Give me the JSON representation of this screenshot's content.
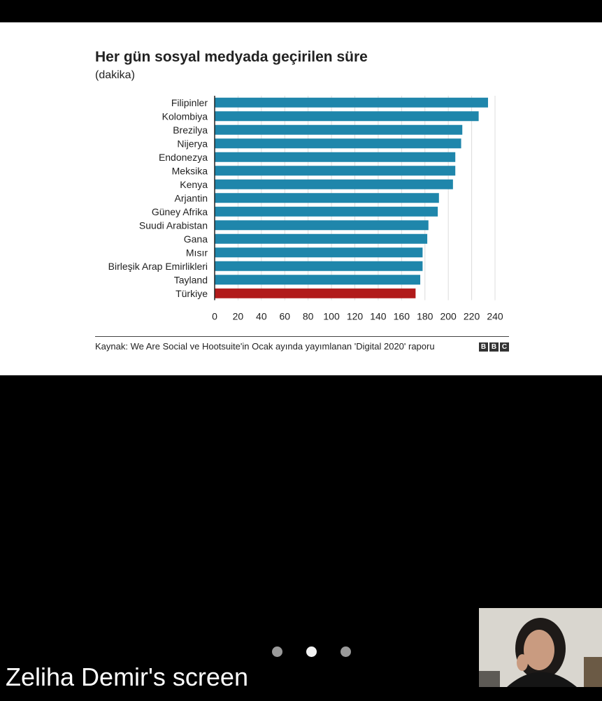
{
  "chart_data": {
    "type": "bar",
    "orientation": "horizontal",
    "title": "Her gün sosyal medyada geçirilen süre",
    "subtitle": "(dakika)",
    "categories": [
      "Filipinler",
      "Kolombiya",
      "Brezilya",
      "Nijerya",
      "Endonezya",
      "Meksika",
      "Kenya",
      "Arjantin",
      "Güney Afrika",
      "Suudi Arabistan",
      "Gana",
      "Mısır",
      "Birleşik Arap Emirlikleri",
      "Tayland",
      "Türkiye"
    ],
    "values": [
      234,
      226,
      212,
      211,
      206,
      206,
      204,
      192,
      191,
      183,
      182,
      178,
      178,
      176,
      172
    ],
    "bar_colors": [
      "#1f86ab",
      "#1f86ab",
      "#1f86ab",
      "#1f86ab",
      "#1f86ab",
      "#1f86ab",
      "#1f86ab",
      "#1f86ab",
      "#1f86ab",
      "#1f86ab",
      "#1f86ab",
      "#1f86ab",
      "#1f86ab",
      "#1f86ab",
      "#b11a1a"
    ],
    "xlim": [
      0,
      240
    ],
    "xticks": [
      0,
      20,
      40,
      60,
      80,
      100,
      120,
      140,
      160,
      180,
      200,
      220,
      240
    ],
    "grid": true,
    "legend": "none",
    "source": "Kaynak: We Are Social ve Hootsuite'in Ocak ayında yayımlanan 'Digital 2020' raporu",
    "logo_letters": [
      "B",
      "B",
      "C"
    ]
  },
  "call": {
    "presenter_label": "Zeliha Demir's screen",
    "pager_dots": 3,
    "active_dot": 1
  },
  "colors": {
    "bar": "#1f86ab",
    "highlight": "#b11a1a",
    "background": "#000000"
  }
}
